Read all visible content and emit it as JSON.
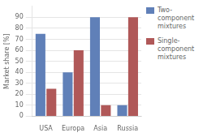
{
  "chart_data": {
    "type": "bar",
    "categories": [
      "USA",
      "Europa",
      "Asia",
      "Russia"
    ],
    "series": [
      {
        "name": "Two-\ncomponent\nmixtures",
        "color": "#6080b8",
        "values": [
          75,
          40,
          90,
          10
        ]
      },
      {
        "name": "Single-\ncomponent\nmixtures",
        "color": "#b05858",
        "values": [
          25,
          60,
          10,
          90
        ]
      }
    ],
    "ylabel": "Market share [%]",
    "ylim": [
      0,
      100
    ],
    "yticks": [
      0,
      10,
      20,
      30,
      40,
      50,
      60,
      70,
      80,
      90
    ],
    "grid": true,
    "legend": "right"
  }
}
